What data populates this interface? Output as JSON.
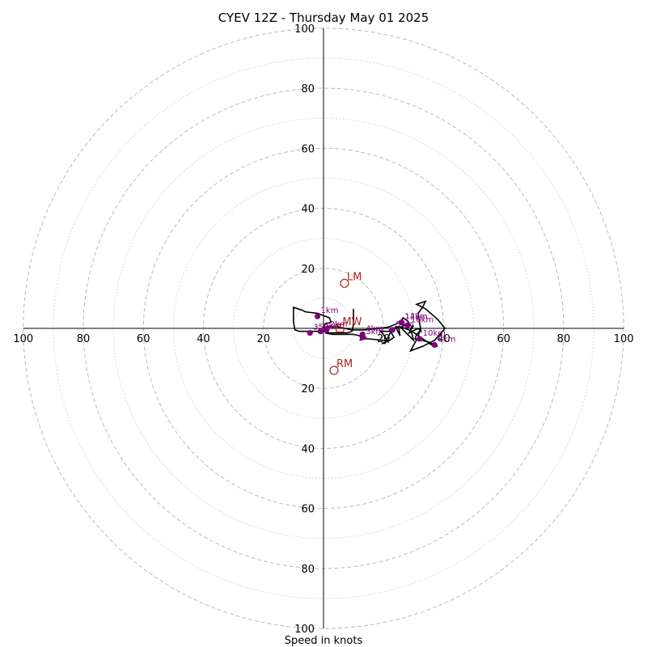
{
  "chart_data": {
    "type": "hodograph",
    "title": "CYEV 12Z - Thursday May 01 2025",
    "xlabel": "Speed in knots",
    "units": "knots",
    "range": [
      -100,
      100
    ],
    "ring_labels": [
      "100",
      "80",
      "60",
      "40",
      "20",
      "20",
      "40",
      "60",
      "80",
      "100"
    ],
    "rings_major_dashed": [
      20,
      40,
      60,
      80,
      100
    ],
    "rings_minor_dotted": [
      10,
      30,
      50,
      70,
      90
    ],
    "colors": {
      "trace": "#000000",
      "height_points": "#800080",
      "motion_markers": "#b22222",
      "rings": "#bbbbbb",
      "axes": "#000000"
    },
    "trace": [
      [
        10.0,
        6.5
      ],
      [
        10.0,
        1.5
      ],
      [
        9.5,
        -1.0
      ],
      [
        8.0,
        -1.5
      ],
      [
        2.0,
        -1.5
      ],
      [
        0.5,
        -1.5
      ],
      [
        3.0,
        -2.0
      ],
      [
        10.0,
        -2.0
      ],
      [
        14.0,
        -3.0
      ],
      [
        12.0,
        -4.0
      ],
      [
        13.5,
        -3.5
      ],
      [
        15.0,
        -3.5
      ],
      [
        20.0,
        -4.0
      ],
      [
        21.5,
        -4.5
      ],
      [
        20.0,
        -2.0
      ],
      [
        19.0,
        -1.0
      ],
      [
        22.5,
        -1.0
      ],
      [
        20.5,
        -5.0
      ],
      [
        19.5,
        -5.0
      ],
      [
        22.0,
        -4.0
      ],
      [
        23.5,
        -3.0
      ],
      [
        22.0,
        -0.5
      ],
      [
        25.0,
        0.5
      ],
      [
        25.5,
        -2.5
      ],
      [
        24.0,
        0.5
      ],
      [
        25.5,
        0.5
      ],
      [
        30.0,
        -4.0
      ],
      [
        29.5,
        -2.0
      ],
      [
        29.0,
        0.0
      ],
      [
        30.0,
        1.0
      ],
      [
        28.5,
        -1.5
      ],
      [
        31.5,
        0.0
      ],
      [
        32.5,
        -1.0
      ],
      [
        31.5,
        5.0
      ],
      [
        33.0,
        7.0
      ],
      [
        34.0,
        9.0
      ],
      [
        31.0,
        8.0
      ],
      [
        34.0,
        6.5
      ],
      [
        38.0,
        3.0
      ],
      [
        40.5,
        0.0
      ],
      [
        37.0,
        -4.0
      ],
      [
        33.0,
        -6.0
      ],
      [
        29.0,
        -7.5
      ],
      [
        31.5,
        -3.0
      ],
      [
        32.0,
        -1.0
      ],
      [
        31.0,
        -2.0
      ],
      [
        30.5,
        -3.5
      ],
      [
        35.0,
        -4.5
      ],
      [
        38.0,
        -6.0
      ],
      [
        36.0,
        -5.5
      ],
      [
        29.5,
        -1.0
      ],
      [
        26.0,
        0.5
      ],
      [
        27.5,
        1.5
      ],
      [
        29.0,
        1.0
      ],
      [
        28.0,
        2.5
      ],
      [
        26.5,
        3.5
      ],
      [
        25.5,
        2.0
      ],
      [
        23.0,
        1.0
      ],
      [
        22.0,
        0.5
      ],
      [
        19.0,
        0.0
      ],
      [
        13.5,
        -0.5
      ],
      [
        9.5,
        -0.5
      ],
      [
        4.5,
        0.5
      ],
      [
        1.0,
        0.5
      ],
      [
        0.5,
        0.0
      ],
      [
        0.0,
        0.5
      ],
      [
        0.5,
        1.5
      ],
      [
        2.5,
        2.0
      ],
      [
        2.0,
        3.5
      ],
      [
        -2.0,
        5.0
      ],
      [
        -6.0,
        5.5
      ],
      [
        -7.0,
        6.0
      ],
      [
        -10.0,
        7.0
      ],
      [
        -10.0,
        2.0
      ],
      [
        -9.5,
        -0.5
      ],
      [
        -8.0,
        -1.0
      ],
      [
        -6.0,
        -1.0
      ],
      [
        -4.0,
        -1.0
      ],
      [
        -2.0,
        -1.0
      ],
      [
        -1.0,
        -1.0
      ],
      [
        0.5,
        -1.0
      ]
    ],
    "height_points": [
      {
        "label": "1km",
        "u": -2.0,
        "v": 4.0
      },
      {
        "label": "2km",
        "u": 1.0,
        "v": -0.5
      },
      {
        "label": "3km",
        "u": 13.0,
        "v": -3.0
      },
      {
        "label": "4km",
        "u": 13.0,
        "v": -2.0
      },
      {
        "label": "5km",
        "u": 23.0,
        "v": -0.5
      },
      {
        "label": "6km",
        "u": -1.0,
        "v": -1.0
      },
      {
        "label": "8km",
        "u": 37.0,
        "v": -5.5
      },
      {
        "label": "10km",
        "u": 32.0,
        "v": -3.5
      },
      {
        "label": "12km",
        "u": 26.0,
        "v": 2.0
      },
      {
        "label": "14km",
        "u": 26.0,
        "v": 2.0
      },
      {
        "label": "16km",
        "u": 28.0,
        "v": 1.0
      },
      {
        "label": "35km",
        "u": -4.5,
        "v": -1.5
      }
    ],
    "motion_markers": [
      {
        "label": "LM",
        "u": 7.0,
        "v": 15.0,
        "shape": "circle"
      },
      {
        "label": "RM",
        "u": 3.5,
        "v": -14.0,
        "shape": "circle"
      },
      {
        "label": "MW",
        "u": 5.5,
        "v": 0.0,
        "shape": "square"
      }
    ]
  }
}
